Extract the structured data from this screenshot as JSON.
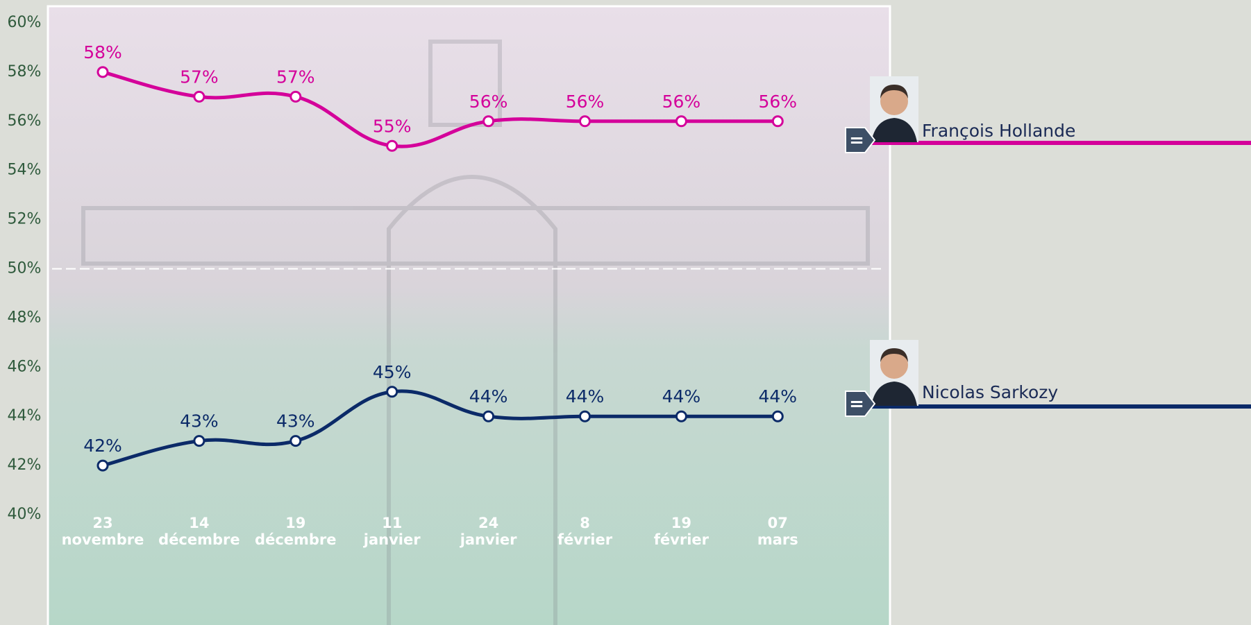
{
  "chart_data": {
    "type": "line",
    "categories": [
      "23 novembre",
      "14 décembre",
      "19 décembre",
      "11 janvier",
      "24 janvier",
      "8 février",
      "19 février",
      "07 mars"
    ],
    "series": [
      {
        "name": "François Hollande",
        "color": "#d4009a",
        "trend_label": "=",
        "values": [
          58,
          57,
          57,
          55,
          56,
          56,
          56,
          56
        ],
        "value_labels": [
          "58%",
          "57%",
          "57%",
          "55%",
          "56%",
          "56%",
          "56%",
          "56%"
        ]
      },
      {
        "name": "Nicolas Sarkozy",
        "color": "#0b2a68",
        "trend_label": "=",
        "values": [
          42,
          43,
          43,
          45,
          44,
          44,
          44,
          44
        ],
        "value_labels": [
          "42%",
          "43%",
          "43%",
          "45%",
          "44%",
          "44%",
          "44%",
          "44%"
        ]
      }
    ],
    "ylim": [
      40,
      60
    ],
    "yticks": [
      {
        "value": 40,
        "label": "40%"
      },
      {
        "value": 42,
        "label": "42%"
      },
      {
        "value": 44,
        "label": "44%"
      },
      {
        "value": 46,
        "label": "46%"
      },
      {
        "value": 48,
        "label": "48%"
      },
      {
        "value": 50,
        "label": "50%"
      },
      {
        "value": 52,
        "label": "52%"
      },
      {
        "value": 54,
        "label": "54%"
      },
      {
        "value": 56,
        "label": "56%"
      },
      {
        "value": 58,
        "label": "58%"
      },
      {
        "value": 60,
        "label": "60%"
      }
    ],
    "reference_line": 50
  }
}
